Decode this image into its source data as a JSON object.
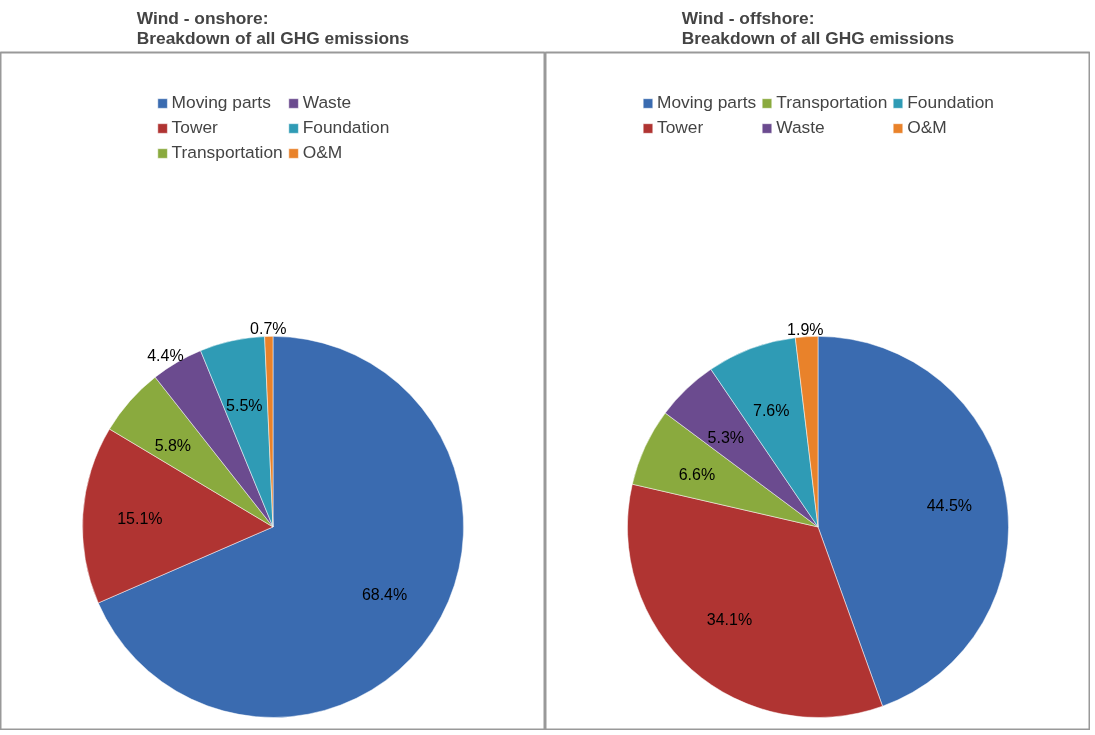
{
  "chart_data": [
    {
      "type": "pie",
      "title": "Wind - onshore:\nBreakdown of all GHG emissions",
      "categories": [
        "Moving parts",
        "Tower",
        "Transportation",
        "Waste",
        "Foundation",
        "O&M"
      ],
      "values": [
        68.4,
        15.1,
        5.8,
        4.4,
        5.5,
        0.7
      ],
      "value_labels": [
        "68.4%",
        "15.1%",
        "5.8%",
        "4.4%",
        "5.5%",
        "0.7%"
      ],
      "colors": [
        "#3a6bb0",
        "#b03432",
        "#8aaa3e",
        "#6b4b8f",
        "#2f9bb5",
        "#e9822a"
      ],
      "legend": "top"
    },
    {
      "type": "pie",
      "title": "Wind - offshore:\nBreakdown of all GHG emissions",
      "categories": [
        "Moving parts",
        "Tower",
        "Transportation",
        "Waste",
        "Foundation",
        "O&M"
      ],
      "values": [
        44.5,
        34.1,
        6.6,
        5.3,
        7.6,
        1.9
      ],
      "value_labels": [
        "44.5%",
        "34.1%",
        "6.6%",
        "5.3%",
        "7.6%",
        "1.9%"
      ],
      "colors": [
        "#3a6bb0",
        "#b03432",
        "#8aaa3e",
        "#6b4b8f",
        "#2f9bb5",
        "#e9822a"
      ],
      "legend": "top"
    }
  ]
}
